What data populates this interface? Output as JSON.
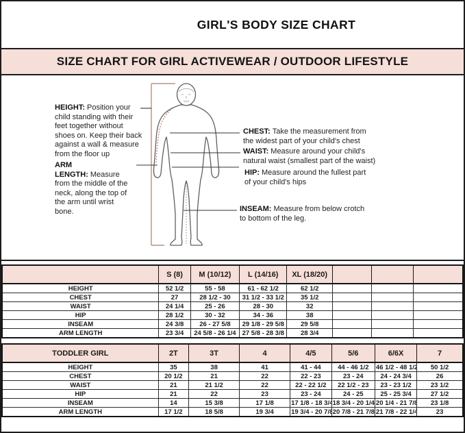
{
  "page": {
    "title": "GIRL'S BODY SIZE CHART",
    "banner": "SIZE CHART FOR GIRL ACTIVEWEAR / OUTDOOR LIFESTYLE"
  },
  "diagram": {
    "height": {
      "term": "HEIGHT:",
      "text": "Position your child standing with their feet together without shoes on. Keep their back against a wall & measure from the floor up"
    },
    "arm_length": {
      "term": "ARM LENGTH:",
      "text": "Measure from the middle of the neck, along the top of the arm until wrist bone."
    },
    "chest": {
      "term": "CHEST:",
      "text": "Take the measurement from the widest part of your child's chest"
    },
    "waist": {
      "term": "WAIST:",
      "text": "Measure around your child's natural waist (smallest part of the waist)"
    },
    "hip": {
      "term": "HIP:",
      "text": "Measure around the fullest part of your child's hips"
    },
    "inseam": {
      "term": "INSEAM:",
      "text": "Measure from below crotch to bottom of the leg."
    }
  },
  "girl_table": {
    "columns": [
      "",
      "S (8)",
      "M (10/12)",
      "L (14/16)",
      "XL (18/20)",
      "",
      "",
      ""
    ],
    "rows": [
      {
        "label": "HEIGHT",
        "values": [
          "52 1/2",
          "55 - 58",
          "61 - 62 1/2",
          "62 1/2",
          "",
          "",
          ""
        ]
      },
      {
        "label": "CHEST",
        "values": [
          "27",
          "28 1/2 - 30",
          "31 1/2 - 33 1/2",
          "35 1/2",
          "",
          "",
          ""
        ]
      },
      {
        "label": "WAIST",
        "values": [
          "24 1/4",
          "25 - 26",
          "28 - 30",
          "32",
          "",
          "",
          ""
        ]
      },
      {
        "label": "HIP",
        "values": [
          "28 1/2",
          "30 - 32",
          "34 - 36",
          "38",
          "",
          "",
          ""
        ]
      },
      {
        "label": "INSEAM",
        "values": [
          "24 3/8",
          "26 - 27 5/8",
          "29 1/8 - 29 5/8",
          "29 5/8",
          "",
          "",
          ""
        ]
      },
      {
        "label": "ARM LENGTH",
        "values": [
          "23 3/4",
          "24 5/8 - 26 1/4",
          "27 5/8 - 28 3/8",
          "28 3/4",
          "",
          "",
          ""
        ]
      }
    ]
  },
  "toddler_table": {
    "columns": [
      "TODDLER GIRL",
      "2T",
      "3T",
      "4",
      "4/5",
      "5/6",
      "6/6X",
      "7"
    ],
    "rows": [
      {
        "label": "HEIGHT",
        "values": [
          "35",
          "38",
          "41",
          "41 - 44",
          "44 - 46 1/2",
          "46 1/2 - 48 1/2",
          "50 1/2"
        ]
      },
      {
        "label": "CHEST",
        "values": [
          "20 1/2",
          "21",
          "22",
          "22 - 23",
          "23 - 24",
          "24 - 24 3/4",
          "26"
        ]
      },
      {
        "label": "WAIST",
        "values": [
          "21",
          "21 1/2",
          "22",
          "22 - 22 1/2",
          "22 1/2 - 23",
          "23 - 23 1/2",
          "23 1/2"
        ]
      },
      {
        "label": "HIP",
        "values": [
          "21",
          "22",
          "23",
          "23 - 24",
          "24 - 25",
          "25 - 25 3/4",
          "27 1/2"
        ]
      },
      {
        "label": "INSEAM",
        "values": [
          "14",
          "15 3/8",
          "17 1/8",
          "17 1/8 - 18 3/4",
          "18 3/4 - 20 1/4",
          "20 1/4 - 21 7/8",
          "23 1/8"
        ]
      },
      {
        "label": "ARM LENGTH",
        "values": [
          "17 1/2",
          "18 5/8",
          "19 3/4",
          "19 3/4 - 20 7/8",
          "20 7/8 - 21 7/8",
          "21 7/8 - 22 1/4",
          "23"
        ]
      }
    ]
  },
  "colors": {
    "accent_pink": "#f6ded9",
    "grid_dark": "#1c1c1c",
    "bracket_brown": "#b98f84",
    "dotted_red": "#a5604e"
  }
}
